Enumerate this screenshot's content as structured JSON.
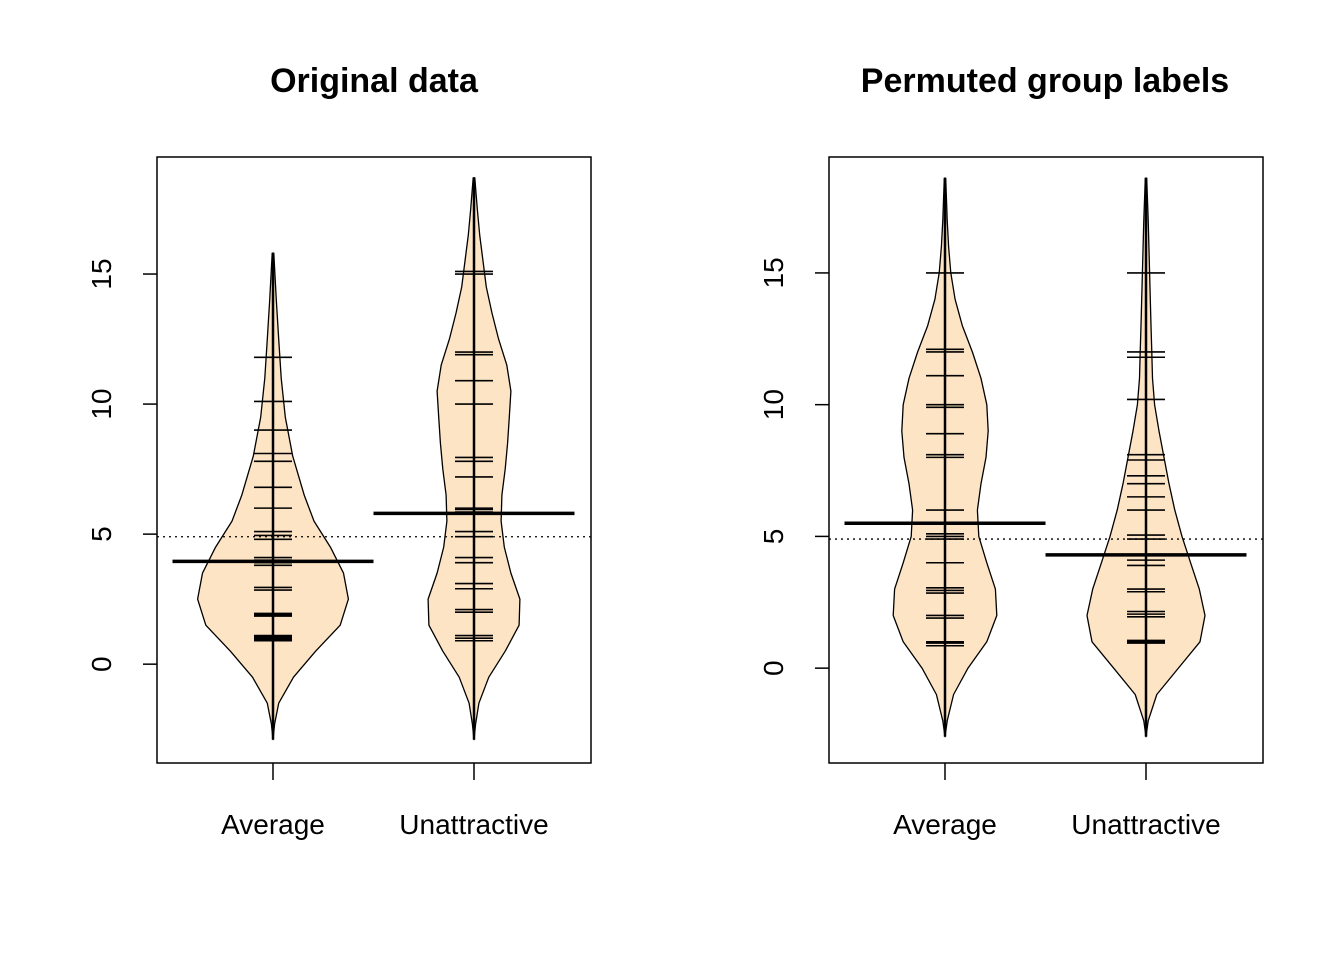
{
  "chart_data": [
    {
      "type": "beanplot",
      "title": "Original data",
      "xlabel": "",
      "ylabel": "",
      "categories": [
        "Average",
        "Unattractive"
      ],
      "ylim": [
        -3.8,
        19.5
      ],
      "yticks": [
        0,
        5,
        10,
        15
      ],
      "overall_mean": 4.9,
      "beans": [
        {
          "category": "Average",
          "mean": 3.95,
          "range": [
            -2.9,
            15.8
          ],
          "density": [
            [
              -2.9,
              0
            ],
            [
              -2.3,
              0.02
            ],
            [
              -1.5,
              0.07
            ],
            [
              -0.5,
              0.25
            ],
            [
              0.5,
              0.52
            ],
            [
              1.5,
              0.82
            ],
            [
              2.5,
              0.92
            ],
            [
              3.5,
              0.86
            ],
            [
              4.5,
              0.7
            ],
            [
              5.5,
              0.5
            ],
            [
              6.5,
              0.38
            ],
            [
              8,
              0.24
            ],
            [
              9.5,
              0.15
            ],
            [
              11,
              0.1
            ],
            [
              12.5,
              0.07
            ],
            [
              14,
              0.04
            ],
            [
              15.8,
              0.01
            ]
          ],
          "values": [
            0.9,
            0.95,
            1.0,
            1.05,
            1.1,
            1.85,
            1.9,
            1.95,
            2.85,
            2.95,
            3.8,
            3.9,
            4.0,
            4.1,
            4.8,
            4.95,
            5.1,
            6.0,
            6.8,
            7.8,
            8.1,
            9.0,
            10.1,
            11.8
          ]
        },
        {
          "category": "Unattractive",
          "mean": 5.8,
          "range": [
            -2.9,
            18.7
          ],
          "density": [
            [
              -2.9,
              0
            ],
            [
              -2.3,
              0.02
            ],
            [
              -1.5,
              0.06
            ],
            [
              -0.5,
              0.18
            ],
            [
              0.5,
              0.38
            ],
            [
              1.5,
              0.55
            ],
            [
              2.5,
              0.56
            ],
            [
              3.5,
              0.45
            ],
            [
              4.5,
              0.37
            ],
            [
              5.5,
              0.33
            ],
            [
              6.5,
              0.34
            ],
            [
              7.5,
              0.38
            ],
            [
              8.5,
              0.41
            ],
            [
              9.5,
              0.43
            ],
            [
              10.5,
              0.45
            ],
            [
              11.5,
              0.4
            ],
            [
              12.5,
              0.3
            ],
            [
              13.5,
              0.22
            ],
            [
              14.5,
              0.15
            ],
            [
              15.5,
              0.11
            ],
            [
              16.5,
              0.07
            ],
            [
              17.5,
              0.04
            ],
            [
              18.7,
              0.01
            ]
          ],
          "values": [
            0.9,
            1.0,
            1.1,
            2.0,
            2.1,
            2.9,
            3.1,
            3.9,
            4.1,
            4.9,
            5.1,
            5.85,
            5.95,
            6.0,
            7.2,
            7.8,
            7.95,
            10.0,
            10.9,
            11.9,
            12.0,
            15.0,
            15.1
          ]
        }
      ]
    },
    {
      "type": "beanplot",
      "title": "Permuted group labels",
      "xlabel": "",
      "ylabel": "",
      "categories": [
        "Average",
        "Unattractive"
      ],
      "ylim": [
        -3.6,
        19.4
      ],
      "yticks": [
        0,
        5,
        10,
        15
      ],
      "overall_mean": 4.9,
      "beans": [
        {
          "category": "Average",
          "mean": 5.5,
          "range": [
            -2.6,
            18.6
          ],
          "density": [
            [
              -2.6,
              0
            ],
            [
              -2.0,
              0.03
            ],
            [
              -1.0,
              0.12
            ],
            [
              0,
              0.32
            ],
            [
              1,
              0.58
            ],
            [
              2,
              0.72
            ],
            [
              3,
              0.7
            ],
            [
              4,
              0.58
            ],
            [
              5,
              0.47
            ],
            [
              6,
              0.45
            ],
            [
              7,
              0.5
            ],
            [
              8,
              0.57
            ],
            [
              9,
              0.6
            ],
            [
              10,
              0.58
            ],
            [
              11,
              0.5
            ],
            [
              12,
              0.38
            ],
            [
              13,
              0.24
            ],
            [
              14,
              0.14
            ],
            [
              15,
              0.08
            ],
            [
              16,
              0.05
            ],
            [
              17,
              0.03
            ],
            [
              18.6,
              0.01
            ]
          ],
          "values": [
            0.85,
            0.95,
            1.0,
            1.9,
            2.0,
            2.85,
            2.95,
            3.05,
            4.0,
            4.9,
            5.0,
            5.1,
            6.0,
            8.0,
            8.1,
            8.9,
            9.9,
            10.0,
            11.1,
            12.0,
            12.1,
            15.0
          ]
        },
        {
          "category": "Unattractive",
          "mean": 4.3,
          "range": [
            -2.6,
            18.6
          ],
          "density": [
            [
              -2.6,
              0
            ],
            [
              -2.0,
              0.03
            ],
            [
              -1.0,
              0.15
            ],
            [
              0,
              0.45
            ],
            [
              1,
              0.75
            ],
            [
              2,
              0.82
            ],
            [
              3,
              0.74
            ],
            [
              4,
              0.62
            ],
            [
              5,
              0.5
            ],
            [
              6,
              0.4
            ],
            [
              7,
              0.32
            ],
            [
              8,
              0.25
            ],
            [
              9,
              0.18
            ],
            [
              10,
              0.12
            ],
            [
              11,
              0.09
            ],
            [
              12,
              0.08
            ],
            [
              13,
              0.07
            ],
            [
              14,
              0.06
            ],
            [
              15,
              0.05
            ],
            [
              16,
              0.04
            ],
            [
              17,
              0.03
            ],
            [
              18.6,
              0.01
            ]
          ],
          "values": [
            0.95,
            1.0,
            1.05,
            1.95,
            2.05,
            2.15,
            2.9,
            3.0,
            3.9,
            4.1,
            4.9,
            5.05,
            6.0,
            6.5,
            7.0,
            7.3,
            7.9,
            8.1,
            10.2,
            11.8,
            12.0,
            15.0
          ]
        }
      ]
    }
  ],
  "colors": {
    "bean_fill": "#FDE4C4",
    "outline": "#000000",
    "background": "#ffffff"
  }
}
